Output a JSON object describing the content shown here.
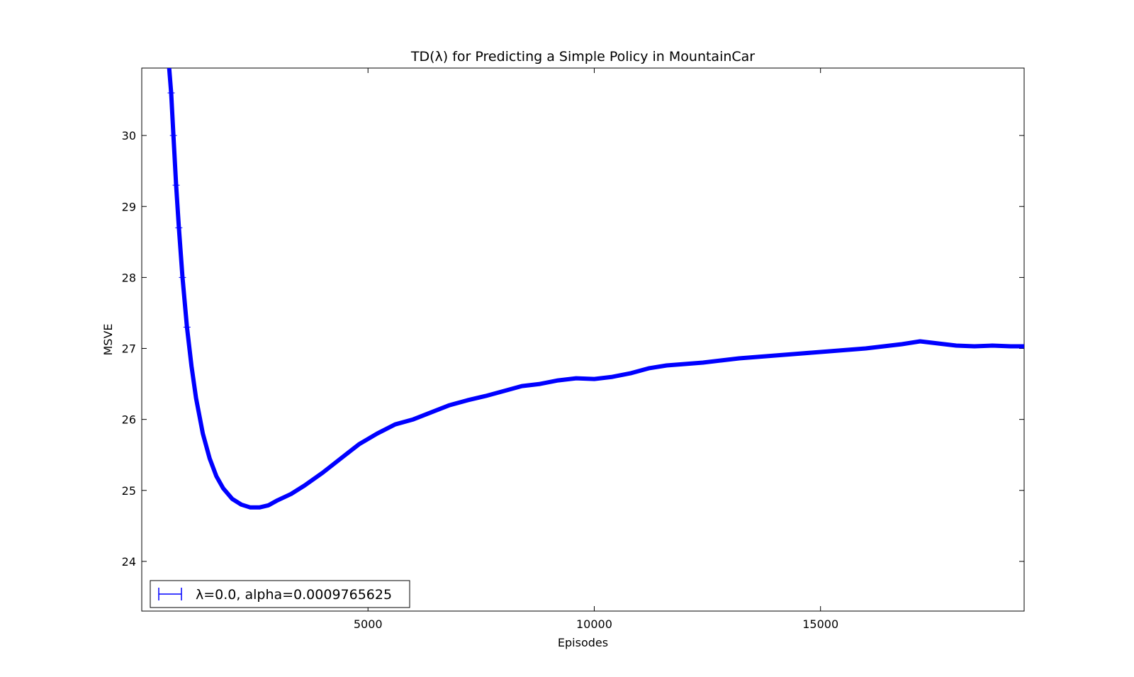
{
  "chart_data": {
    "type": "line",
    "title": "TD(λ) for Predicting a Simple Policy in MountainCar",
    "xlabel": "Episodes",
    "ylabel": "MSVE",
    "xlim": [
      0,
      19500
    ],
    "ylim": [
      23.3,
      30.95
    ],
    "xticks": [
      5000,
      10000,
      15000
    ],
    "xtick_labels": [
      "5000",
      "10000",
      "15000"
    ],
    "yticks": [
      24,
      25,
      26,
      27,
      28,
      29,
      30
    ],
    "ytick_labels": [
      "24",
      "25",
      "26",
      "27",
      "28",
      "29",
      "30"
    ],
    "grid": false,
    "legend_position": "lower-left",
    "color": "#0000ff",
    "series": [
      {
        "name": "λ=0.0, alpha=0.0009765625",
        "x": [
          600,
          650,
          700,
          760,
          820,
          900,
          1000,
          1100,
          1200,
          1350,
          1500,
          1650,
          1800,
          2000,
          2200,
          2400,
          2600,
          2800,
          3000,
          3300,
          3600,
          4000,
          4400,
          4800,
          5200,
          5600,
          6000,
          6400,
          6800,
          7200,
          7600,
          8000,
          8400,
          8800,
          9200,
          9600,
          10000,
          10400,
          10800,
          11200,
          11600,
          12000,
          12400,
          12800,
          13200,
          13600,
          14000,
          14400,
          14800,
          15200,
          15600,
          16000,
          16400,
          16800,
          17200,
          17600,
          18000,
          18400,
          18800,
          19200,
          19500
        ],
        "y": [
          31.0,
          30.6,
          30.0,
          29.3,
          28.7,
          28.0,
          27.3,
          26.75,
          26.3,
          25.8,
          25.45,
          25.2,
          25.03,
          24.88,
          24.8,
          24.76,
          24.76,
          24.79,
          24.86,
          24.95,
          25.07,
          25.25,
          25.45,
          25.65,
          25.8,
          25.93,
          26.0,
          26.1,
          26.2,
          26.27,
          26.33,
          26.4,
          26.47,
          26.5,
          26.55,
          26.58,
          26.57,
          26.6,
          26.65,
          26.72,
          26.76,
          26.78,
          26.8,
          26.83,
          26.86,
          26.88,
          26.9,
          26.92,
          26.94,
          26.96,
          26.98,
          27.0,
          27.03,
          27.06,
          27.1,
          27.07,
          27.04,
          27.03,
          27.04,
          27.03,
          27.03
        ]
      }
    ]
  }
}
